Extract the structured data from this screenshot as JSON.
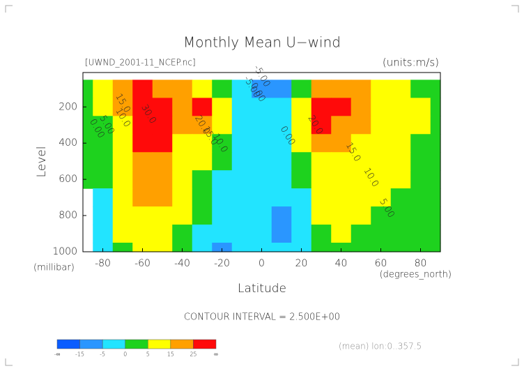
{
  "chart_data": {
    "type": "contour",
    "title": "Monthly Mean U−wind",
    "subtitle": "[UWND_2001-11_NCEP.nc]",
    "units_label": "(units:m/s)",
    "xlabel": "Latitude",
    "xunits": "(degrees_north)",
    "ylabel": "Level",
    "yunits": "(millibar)",
    "contour_interval": "CONTOUR INTERVAL = 2.500E+00",
    "footnote": "(mean) lon:0..357.5",
    "x": [
      -90,
      -80,
      -70,
      -60,
      -50,
      -40,
      -30,
      -20,
      -10,
      0,
      10,
      20,
      30,
      40,
      50,
      60,
      70,
      80,
      90
    ],
    "y": [
      100,
      200,
      300,
      400,
      500,
      600,
      700,
      800,
      900,
      1000
    ],
    "z": [
      [
        3,
        8,
        22,
        33,
        24,
        16,
        14,
        2,
        -4,
        -8,
        -7,
        2,
        20,
        20,
        16,
        10,
        6,
        3,
        1
      ],
      [
        2,
        6,
        18,
        32,
        30,
        20,
        27,
        10,
        -2,
        -3,
        -1,
        10,
        30,
        26,
        18,
        12,
        8,
        5,
        2
      ],
      [
        1,
        4,
        14,
        30,
        30,
        18,
        20,
        8,
        -2,
        -3,
        -1,
        8,
        26,
        22,
        17,
        11,
        7,
        5,
        2
      ],
      [
        1,
        3,
        12,
        28,
        26,
        14,
        12,
        4,
        -2,
        -2,
        -1,
        5,
        20,
        18,
        14,
        10,
        7,
        4,
        2
      ],
      [
        1,
        2,
        10,
        22,
        20,
        10,
        7,
        1,
        -3,
        -2,
        -2,
        2,
        14,
        14,
        12,
        9,
        6,
        4,
        2
      ],
      [
        0,
        1,
        9,
        18,
        17,
        8,
        3,
        -1,
        -3,
        -2,
        -2,
        0,
        10,
        11,
        10,
        7,
        5,
        3,
        1
      ],
      [
        null,
        -2,
        8,
        16,
        15,
        6,
        1,
        -3,
        -4,
        -3,
        -3,
        -1,
        7,
        9,
        8,
        5,
        3,
        2,
        1
      ],
      [
        null,
        -4,
        7,
        14,
        13,
        5,
        0,
        -3,
        -5,
        -3,
        -6,
        -2,
        5,
        7,
        6,
        3,
        2,
        1,
        1
      ],
      [
        null,
        -5,
        5,
        10,
        10,
        4,
        -1,
        -5,
        -3,
        -2,
        -6,
        -2,
        3,
        5,
        4,
        2,
        1,
        1,
        0
      ],
      [
        null,
        -3,
        3,
        6,
        6,
        2,
        -2,
        -6,
        -3,
        -2,
        -4,
        -1,
        2,
        3,
        3,
        1,
        1,
        0,
        0
      ]
    ],
    "xlim": [
      -90,
      90
    ],
    "ylim": [
      1000,
      10
    ],
    "xticks": [
      -80,
      -60,
      -40,
      -20,
      0,
      20,
      40,
      60,
      80
    ],
    "yticks": [
      200,
      400,
      600,
      800,
      1000
    ],
    "contour_labels": [
      {
        "text": "30.0",
        "x": -57,
        "y": 240
      },
      {
        "text": "15.0",
        "x": -70,
        "y": 180
      },
      {
        "text": "10.0",
        "x": -70,
        "y": 260
      },
      {
        "text": "5.00",
        "x": -78,
        "y": 300
      },
      {
        "text": "0.00",
        "x": -83,
        "y": 320
      },
      {
        "text": "20.0",
        "x": -30,
        "y": 300
      },
      {
        "text": "15.0",
        "x": -26,
        "y": 360
      },
      {
        "text": "10.0",
        "x": -21,
        "y": 400
      },
      {
        "text": "-5.00",
        "x": 0,
        "y": 30
      },
      {
        "text": "-5.00",
        "x": -5,
        "y": 90
      },
      {
        "text": "0.00",
        "x": -2,
        "y": 120
      },
      {
        "text": "0.00",
        "x": 13,
        "y": 360
      },
      {
        "text": "20.0",
        "x": 27,
        "y": 300
      },
      {
        "text": "15.0",
        "x": 46,
        "y": 450
      },
      {
        "text": "10.0",
        "x": 55,
        "y": 590
      },
      {
        "text": "5.00",
        "x": 63,
        "y": 760
      }
    ],
    "colorbar": {
      "ticks": [
        -15,
        -5,
        0,
        5,
        15,
        25
      ],
      "end_labels": [
        "-∞",
        "∞"
      ],
      "colors": [
        "#0a5cff",
        "#2a96ff",
        "#22e4ff",
        "#1ed21e",
        "#ffff00",
        "#ffa000",
        "#ff0a0a"
      ]
    }
  }
}
